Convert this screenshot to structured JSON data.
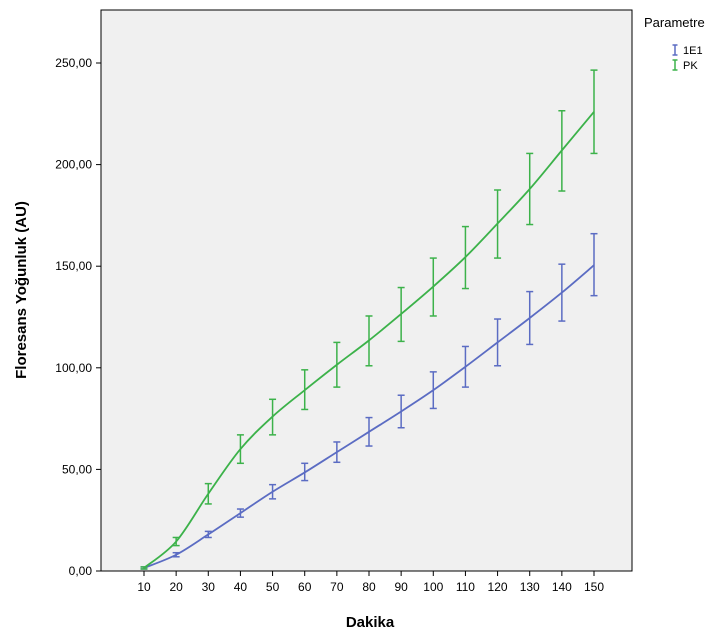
{
  "chart_data": {
    "type": "line",
    "xlabel": "Dakika",
    "ylabel": "Floresans Yoğunluk (AU)",
    "x": [
      10,
      20,
      30,
      40,
      50,
      60,
      70,
      80,
      90,
      100,
      110,
      120,
      130,
      140,
      150
    ],
    "x_tick_labels": [
      "10",
      "20",
      "30",
      "40",
      "50",
      "60",
      "70",
      "80",
      "90",
      "100",
      "110",
      "120",
      "130",
      "140",
      "150"
    ],
    "ylim": [
      0,
      250
    ],
    "y_ticks": [
      0,
      50,
      100,
      150,
      200,
      250
    ],
    "y_tick_labels": [
      "0,00",
      "50,00",
      "100,00",
      "150,00",
      "200,00",
      "250,00"
    ],
    "grid": false,
    "background_color": "#f0f0f0",
    "legend": {
      "title": "Parametre",
      "placement": "outside-top-right"
    },
    "series": [
      {
        "name": "1E1",
        "color": "#5b6cc3",
        "values": [
          1.5,
          8,
          18,
          28.5,
          39,
          48.5,
          58.5,
          68.5,
          78.5,
          89,
          100.5,
          112.5,
          124.5,
          137,
          150.5
        ],
        "err_low": [
          1,
          7,
          16.5,
          26.5,
          35.5,
          44.5,
          53.5,
          61.5,
          70.5,
          80,
          90.5,
          101,
          111.5,
          123,
          135.5
        ],
        "err_high": [
          2,
          9,
          19.5,
          30.5,
          42.5,
          53,
          63.5,
          75.5,
          86.5,
          98,
          110.5,
          124,
          137.5,
          151,
          166
        ]
      },
      {
        "name": "PK",
        "color": "#3cb24a",
        "values": [
          1.5,
          14.5,
          38,
          60,
          76,
          89,
          101.5,
          113.5,
          126.5,
          140,
          154.5,
          171,
          188,
          207,
          226
        ],
        "err_low": [
          1,
          12.5,
          33,
          53,
          67,
          79.5,
          90.5,
          101,
          113,
          125.5,
          139,
          154,
          170.5,
          187,
          205.5
        ],
        "err_high": [
          2,
          16.5,
          43,
          67,
          84.5,
          99,
          112.5,
          125.5,
          139.5,
          154,
          169.5,
          187.5,
          205.5,
          226.5,
          246.5
        ]
      }
    ]
  }
}
